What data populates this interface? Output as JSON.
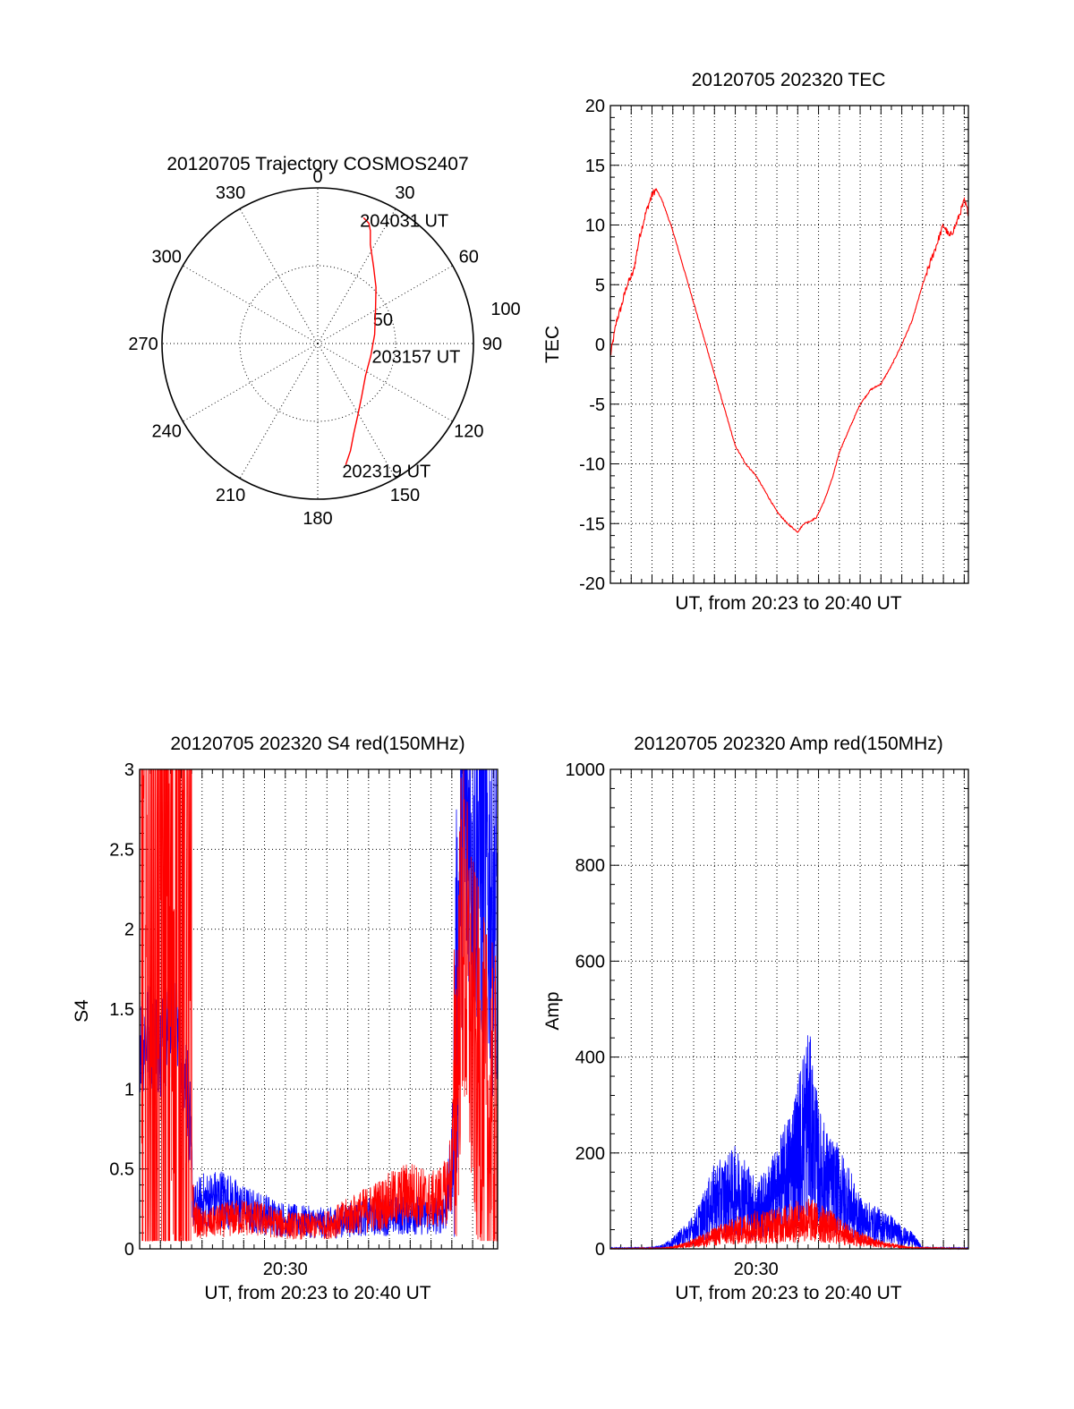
{
  "colors": {
    "red": "#ff0000",
    "blue": "#0000ff",
    "axis": "#000000",
    "background": "#ffffff"
  },
  "chart_data": [
    {
      "type": "polar",
      "title": "20120705 Trajectory COSMOS2407",
      "angle_labels": [
        "0",
        "30",
        "60",
        "90",
        "120",
        "150",
        "180",
        "210",
        "240",
        "270",
        "300",
        "330"
      ],
      "angle_values_deg": [
        0,
        30,
        60,
        90,
        120,
        150,
        180,
        210,
        240,
        270,
        300,
        330
      ],
      "radius_labels": [
        "50",
        "100"
      ],
      "radius_values": [
        50,
        100
      ],
      "rmax": 100,
      "grid": true,
      "series": [
        {
          "color": "red",
          "points": [
            {
              "az": 167,
              "r": 80
            },
            {
              "az": 163,
              "r": 72
            },
            {
              "az": 158,
              "r": 62
            },
            {
              "az": 151,
              "r": 53
            },
            {
              "az": 140,
              "r": 44
            },
            {
              "az": 124,
              "r": 37
            },
            {
              "az": 103,
              "r": 35
            },
            {
              "az": 81,
              "r": 37
            },
            {
              "az": 62,
              "r": 42
            },
            {
              "az": 46,
              "r": 52
            },
            {
              "az": 36,
              "r": 61
            },
            {
              "az": 28,
              "r": 72
            },
            {
              "az": 25,
              "r": 80
            },
            {
              "az": 23,
              "r": 84
            },
            {
              "az": 20,
              "r": 86
            }
          ]
        }
      ],
      "annotations": [
        {
          "text": "204031 UT",
          "az": 20,
          "r": 86
        },
        {
          "text": "203157 UT",
          "az": 97,
          "r": 35
        },
        {
          "text": "202319 UT",
          "az": 167,
          "r": 80
        }
      ]
    },
    {
      "type": "line",
      "title": "20120705 202320 TEC",
      "xlabel": "UT, from 20:23 to 20:40 UT",
      "ylabel": "TEC",
      "xlim": [
        0,
        17.2
      ],
      "ylim": [
        -20,
        20
      ],
      "yticks": [
        "-20",
        "-15",
        "-10",
        "-5",
        "0",
        "5",
        "10",
        "15",
        "20"
      ],
      "ytick_values": [
        -20,
        -15,
        -10,
        -5,
        0,
        5,
        10,
        15,
        20
      ],
      "xticks": [],
      "grid": true,
      "series": [
        {
          "color": "red",
          "x": [
            0,
            0.15,
            0.3,
            0.5,
            0.8,
            1.1,
            1.4,
            1.7,
            1.85,
            2.0,
            2.2,
            2.5,
            3.0,
            3.5,
            4.0,
            4.5,
            5.0,
            5.5,
            6.0,
            6.5,
            7.0,
            7.5,
            8.0,
            8.5,
            9.0,
            9.3,
            9.6,
            9.9,
            10.3,
            10.7,
            11.0,
            11.5,
            12.0,
            12.5,
            13.0,
            13.5,
            14.0,
            14.5,
            15.0,
            15.5,
            16.0,
            16.3,
            16.6,
            16.8,
            17.0,
            17.2
          ],
          "y": [
            -1,
            0.5,
            2,
            3,
            5,
            6,
            9,
            11,
            11.8,
            12.5,
            13,
            12,
            9.5,
            6.5,
            3.5,
            0.5,
            -2.5,
            -5.5,
            -8.5,
            -10,
            -11,
            -12.5,
            -14,
            -15,
            -15.7,
            -15,
            -14.8,
            -14.5,
            -13,
            -11,
            -9,
            -7,
            -5,
            -3.8,
            -3.3,
            -1.8,
            0,
            2,
            5,
            7.5,
            10,
            9,
            10,
            11,
            12,
            11
          ]
        }
      ]
    },
    {
      "type": "line",
      "title": "20120705 202320 S4 red(150MHz)",
      "xlabel": "UT, from 20:23 to 20:40 UT",
      "ylabel": "S4",
      "xlim": [
        0,
        17.2
      ],
      "ylim": [
        0,
        3
      ],
      "yticks": [
        "0",
        "0.5",
        "1",
        "1.5",
        "2",
        "2.5",
        "3"
      ],
      "ytick_values": [
        0,
        0.5,
        1,
        1.5,
        2,
        2.5,
        3
      ],
      "xticks": [
        "20:30"
      ],
      "xtick_values": [
        7
      ],
      "grid": true,
      "series": [
        {
          "color": "blue",
          "x": [
            0,
            0.5,
            1.0,
            1.5,
            2.0,
            2.3,
            2.6,
            3.0,
            4.0,
            5.0,
            6.0,
            7.0,
            8.0,
            9.0,
            10.0,
            11.0,
            12.0,
            13.0,
            14.0,
            14.7,
            15.0,
            15.5,
            16.0,
            16.5,
            17.0,
            17.2
          ],
          "y": [
            1.3,
            1.35,
            1.3,
            1.4,
            1.3,
            1.0,
            0.25,
            0.3,
            0.32,
            0.25,
            0.22,
            0.18,
            0.17,
            0.16,
            0.18,
            0.2,
            0.2,
            0.22,
            0.2,
            0.25,
            0.5,
            2.7,
            2.6,
            2.4,
            2.2,
            2.1
          ]
        },
        {
          "color": "red",
          "x": [
            0,
            0.5,
            1.0,
            1.5,
            2.0,
            2.3,
            2.6,
            3.0,
            4.0,
            5.0,
            6.0,
            7.0,
            8.0,
            9.0,
            10.0,
            11.0,
            12.0,
            13.0,
            14.0,
            14.7,
            15.0,
            15.5,
            16.0,
            16.5,
            17.0,
            17.2
          ],
          "y": [
            2.0,
            1.6,
            2.2,
            1.8,
            2.5,
            1.2,
            0.2,
            0.15,
            0.18,
            0.2,
            0.18,
            0.15,
            0.14,
            0.15,
            0.2,
            0.25,
            0.3,
            0.35,
            0.3,
            0.35,
            0.5,
            2.0,
            1.3,
            0.9,
            0.7,
            0.6
          ]
        }
      ]
    },
    {
      "type": "line",
      "title": "20120705 202320 Amp red(150MHz)",
      "xlabel": "UT, from 20:23 to 20:40 UT",
      "ylabel": "Amp",
      "xlim": [
        0,
        17.2
      ],
      "ylim": [
        0,
        1000
      ],
      "yticks": [
        "0",
        "200",
        "400",
        "600",
        "800",
        "1000"
      ],
      "ytick_values": [
        0,
        200,
        400,
        600,
        800,
        1000
      ],
      "xticks": [
        "20:30"
      ],
      "xtick_values": [
        7
      ],
      "grid": true,
      "series": [
        {
          "color": "blue",
          "x": [
            0,
            2.0,
            2.5,
            3.0,
            3.5,
            4.0,
            4.5,
            5.0,
            5.5,
            6.0,
            6.5,
            7.0,
            7.5,
            8.0,
            8.5,
            9.0,
            9.5,
            10.0,
            10.5,
            11.0,
            11.5,
            12.0,
            12.5,
            13.0,
            13.5,
            14.0,
            14.5,
            15.0,
            17.2
          ],
          "y": [
            2,
            3,
            8,
            20,
            40,
            60,
            100,
            150,
            160,
            180,
            160,
            120,
            140,
            180,
            230,
            300,
            400,
            250,
            200,
            180,
            140,
            90,
            80,
            70,
            60,
            40,
            30,
            3,
            2
          ]
        },
        {
          "color": "red",
          "x": [
            0,
            2.5,
            3.0,
            3.5,
            4.0,
            4.5,
            5.0,
            5.5,
            6.0,
            6.5,
            7.0,
            7.5,
            8.0,
            8.5,
            9.0,
            9.5,
            10.0,
            10.5,
            11.0,
            11.5,
            12.0,
            12.5,
            13.0,
            13.5,
            14.0,
            14.5,
            17.2
          ],
          "y": [
            1,
            2,
            5,
            10,
            18,
            28,
            38,
            48,
            55,
            62,
            68,
            70,
            72,
            78,
            85,
            90,
            80,
            70,
            55,
            40,
            30,
            22,
            15,
            10,
            6,
            3,
            1
          ]
        }
      ]
    }
  ]
}
